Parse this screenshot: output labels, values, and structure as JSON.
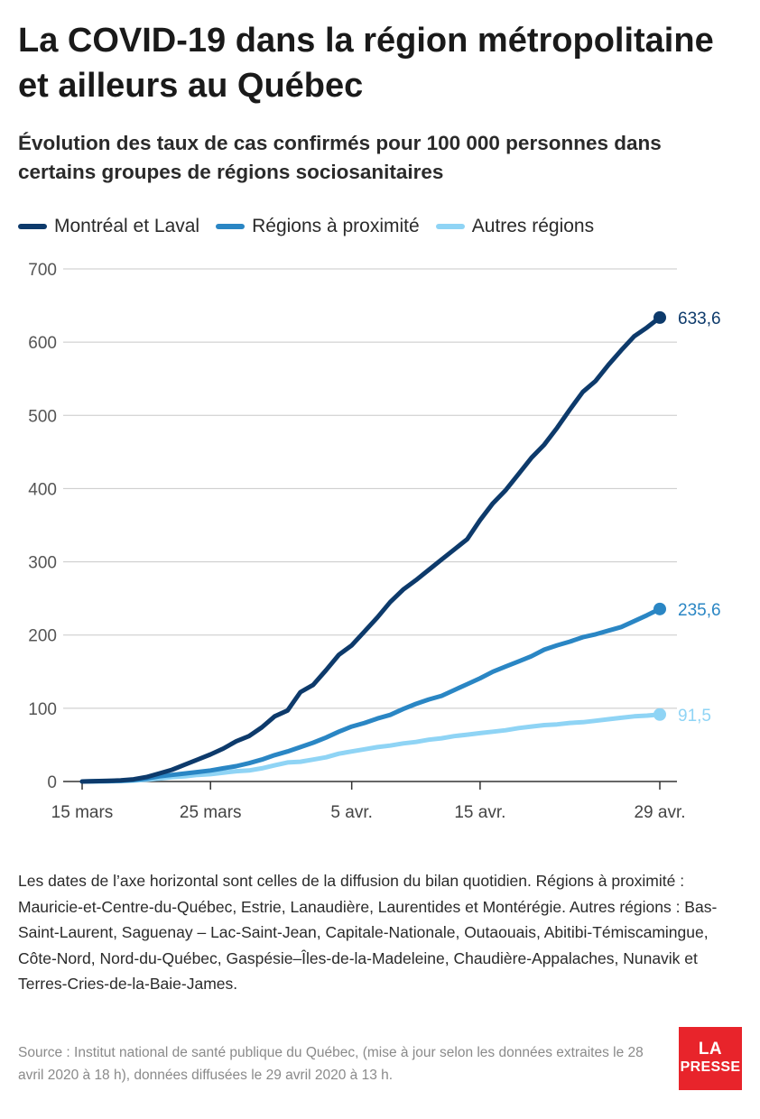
{
  "title": "La COVID-19 dans la région métropolitaine et ailleurs au Québec",
  "subtitle": "Évolution des taux de cas confirmés pour 100 000 personnes dans certains groupes de régions sociosanitaires",
  "legend": [
    {
      "label": "Montréal et Laval",
      "color": "#0d3a6b"
    },
    {
      "label": "Régions à proximité",
      "color": "#2a86c4"
    },
    {
      "label": "Autres régions",
      "color": "#8fd4f5"
    }
  ],
  "chart_data": {
    "type": "line",
    "x_ticks": [
      {
        "day": 0,
        "label": "15 mars"
      },
      {
        "day": 10,
        "label": "25 mars"
      },
      {
        "day": 21,
        "label": "5 avr."
      },
      {
        "day": 31,
        "label": "15 avr."
      },
      {
        "day": 45,
        "label": "29 avr."
      }
    ],
    "ylim": [
      0,
      700
    ],
    "yticks": [
      0,
      100,
      200,
      300,
      400,
      500,
      600,
      700
    ],
    "grid": true,
    "legend_position": "top",
    "series": [
      {
        "name": "Montréal et Laval",
        "color": "#0d3a6b",
        "end_label": "633,6",
        "x": [
          0,
          1,
          2,
          3,
          4,
          5,
          6,
          7,
          8,
          9,
          10,
          11,
          12,
          13,
          14,
          15,
          16,
          17,
          18,
          19,
          20,
          21,
          22,
          23,
          24,
          25,
          26,
          27,
          28,
          29,
          30,
          31,
          32,
          33,
          34,
          35,
          36,
          37,
          38,
          39,
          40,
          41,
          42,
          43,
          44,
          45
        ],
        "values": [
          0,
          0.5,
          1,
          1.5,
          3,
          6,
          11,
          16,
          23,
          30,
          37,
          45,
          55,
          62,
          74,
          89,
          97,
          122,
          132,
          152,
          173,
          186,
          205,
          224,
          245,
          262,
          275,
          289,
          303,
          317,
          331,
          357,
          380,
          398,
          420,
          442,
          460,
          483,
          508,
          532,
          547,
          569,
          589,
          608,
          620,
          633.6
        ]
      },
      {
        "name": "Régions à proximité",
        "color": "#2a86c4",
        "end_label": "235,6",
        "x": [
          0,
          1,
          2,
          3,
          4,
          5,
          6,
          7,
          8,
          9,
          10,
          11,
          12,
          13,
          14,
          15,
          16,
          17,
          18,
          19,
          20,
          21,
          22,
          23,
          24,
          25,
          26,
          27,
          28,
          29,
          30,
          31,
          32,
          33,
          34,
          35,
          36,
          37,
          38,
          39,
          40,
          41,
          42,
          43,
          44,
          45
        ],
        "values": [
          0,
          0.2,
          0.5,
          1,
          2,
          4,
          7,
          9,
          11,
          13,
          15,
          18,
          21,
          25,
          30,
          36,
          41,
          47,
          53,
          60,
          68,
          75,
          80,
          86,
          91,
          99,
          106,
          112,
          117,
          125,
          133,
          141,
          150,
          157,
          164,
          171,
          180,
          186,
          191,
          197,
          201,
          206,
          211,
          219,
          227,
          235.6
        ]
      },
      {
        "name": "Autres régions",
        "color": "#8fd4f5",
        "end_label": "91,5",
        "x": [
          0,
          1,
          2,
          3,
          4,
          5,
          6,
          7,
          8,
          9,
          10,
          11,
          12,
          13,
          14,
          15,
          16,
          17,
          18,
          19,
          20,
          21,
          22,
          23,
          24,
          25,
          26,
          27,
          28,
          29,
          30,
          31,
          32,
          33,
          34,
          35,
          36,
          37,
          38,
          39,
          40,
          41,
          42,
          43,
          44,
          45
        ],
        "values": [
          0,
          0.1,
          0.3,
          0.6,
          1.2,
          2.5,
          4,
          6,
          7,
          9,
          10,
          12,
          14,
          15,
          18,
          22,
          26,
          27,
          30,
          33,
          38,
          41,
          44,
          47,
          49,
          52,
          54,
          57,
          59,
          62,
          64,
          66,
          68,
          70,
          73,
          75,
          77,
          78,
          80,
          81,
          83,
          85,
          87,
          89,
          90,
          91.5
        ]
      }
    ]
  },
  "notes": "Les dates de l’axe horizontal sont celles de la diffusion du bilan quotidien. Régions à proximité : Mauricie-et-Centre-du-Québec, Estrie, Lanaudière, Laurentides et Montérégie. Autres régions : Bas-Saint-Laurent, Saguenay – Lac-Saint-Jean, Capitale-Nationale, Outaouais, Abitibi-Témiscamingue, Côte-Nord, Nord-du-Québec, Gaspésie–Îles-de-la-Madeleine, Chaudière-Appalaches, Nunavik et Terres-Cries-de-la-Baie-James.",
  "source": "Source : Institut national de santé publique du Québec, (mise à jour selon les données extraites le 28 avril 2020 à 18 h), données diffusées le 29 avril 2020 à 13 h.",
  "logo": {
    "line1": "LA",
    "line2": "PRESSE",
    "color": "#e8242b"
  }
}
